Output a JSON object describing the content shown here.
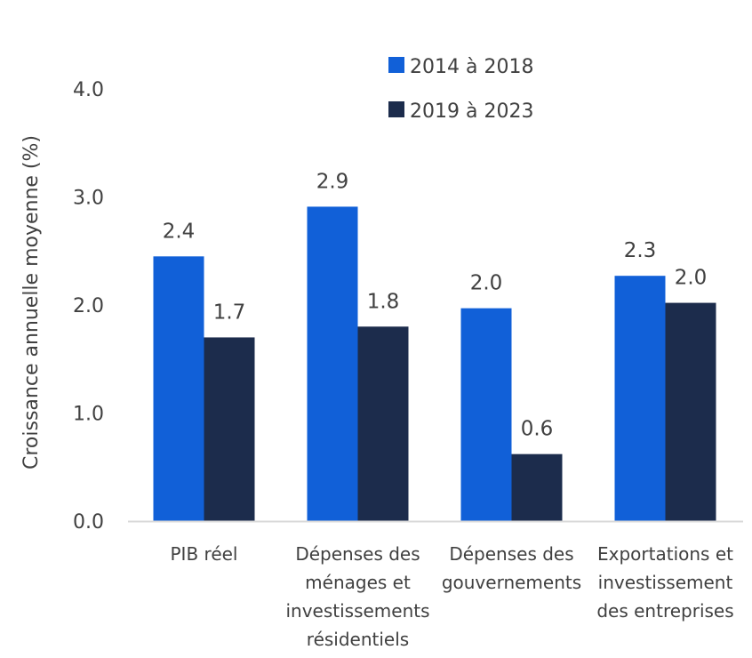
{
  "chart_data": {
    "type": "bar",
    "title": "",
    "xlabel": "",
    "ylabel": "Croissance annuelle moyenne (%)",
    "ylim": [
      0,
      4
    ],
    "yticks": [
      "0.0",
      "1.0",
      "2.0",
      "3.0",
      "4.0"
    ],
    "grid": false,
    "legend_position": "top",
    "categories": [
      [
        "PIB réel"
      ],
      [
        "Dépenses des",
        "ménages et",
        "investissements",
        "résidentiels"
      ],
      [
        "Dépenses des",
        "gouvernements"
      ],
      [
        "Exportations et",
        "investissement",
        "des entreprises"
      ]
    ],
    "series": [
      {
        "name": "2014 à 2018",
        "color": "#1160d8",
        "values": [
          2.45,
          2.91,
          1.97,
          2.27
        ],
        "labels": [
          "2.4",
          "2.9",
          "2.0",
          "2.3"
        ]
      },
      {
        "name": "2019 à 2023",
        "color": "#1c2c4c",
        "values": [
          1.7,
          1.8,
          0.62,
          2.02
        ],
        "labels": [
          "1.7",
          "1.8",
          "0.6",
          "2.0"
        ]
      }
    ]
  }
}
